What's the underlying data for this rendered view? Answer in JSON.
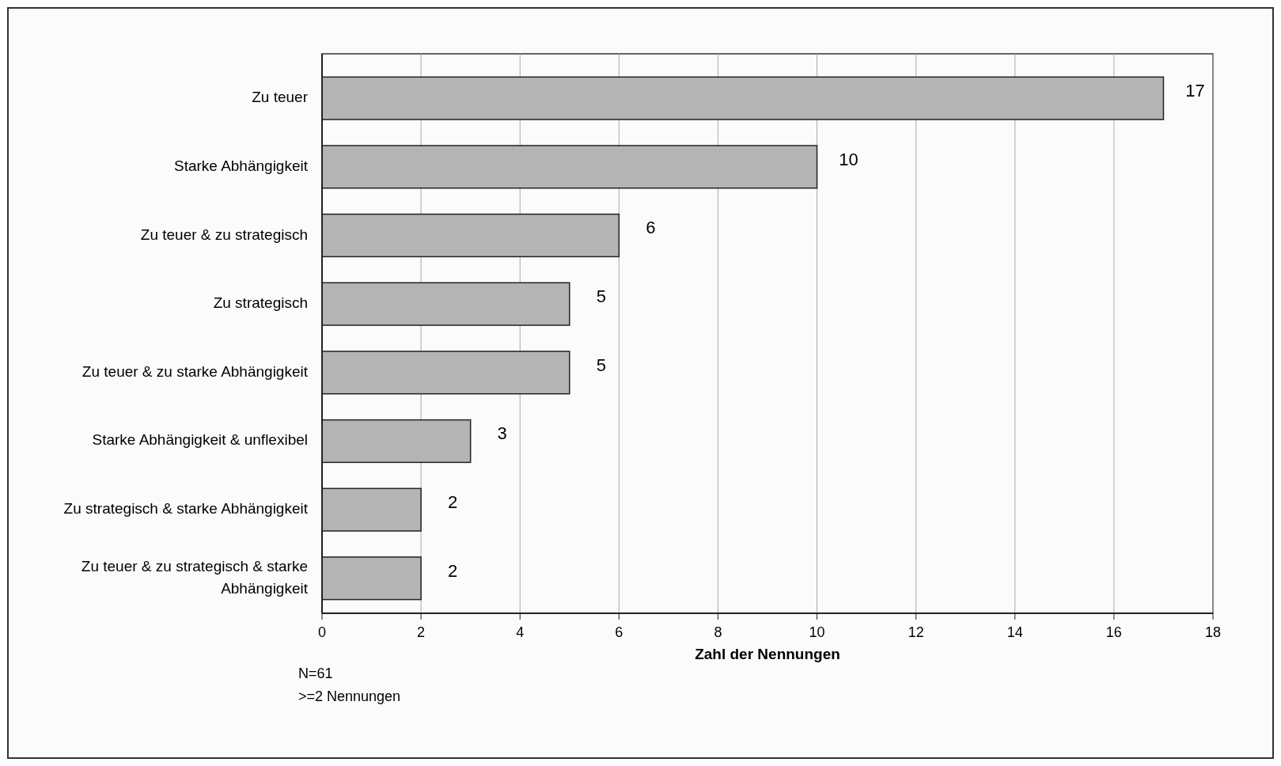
{
  "chart_data": {
    "type": "bar",
    "orientation": "horizontal",
    "xlabel": "Zahl der Nennungen",
    "categories": [
      "Zu teuer",
      "Starke Abhängigkeit",
      "Zu teuer & zu strategisch",
      "Zu strategisch",
      "Zu teuer & zu starke Abhängigkeit",
      "Starke Abhängigkeit & unflexibel",
      "Zu strategisch & starke Abhängigkeit",
      "Zu teuer & zu strategisch & starke Abhängigkeit"
    ],
    "values": [
      17,
      10,
      6,
      5,
      5,
      3,
      2,
      2
    ],
    "color": "#b4b4b4",
    "xlim": [
      0,
      18
    ],
    "xticks": [
      0,
      2,
      4,
      6,
      8,
      10,
      12,
      14,
      16,
      18
    ],
    "grid": "x",
    "data_labels": true,
    "annotations": [
      "N=61",
      ">=2 Nennungen"
    ]
  }
}
